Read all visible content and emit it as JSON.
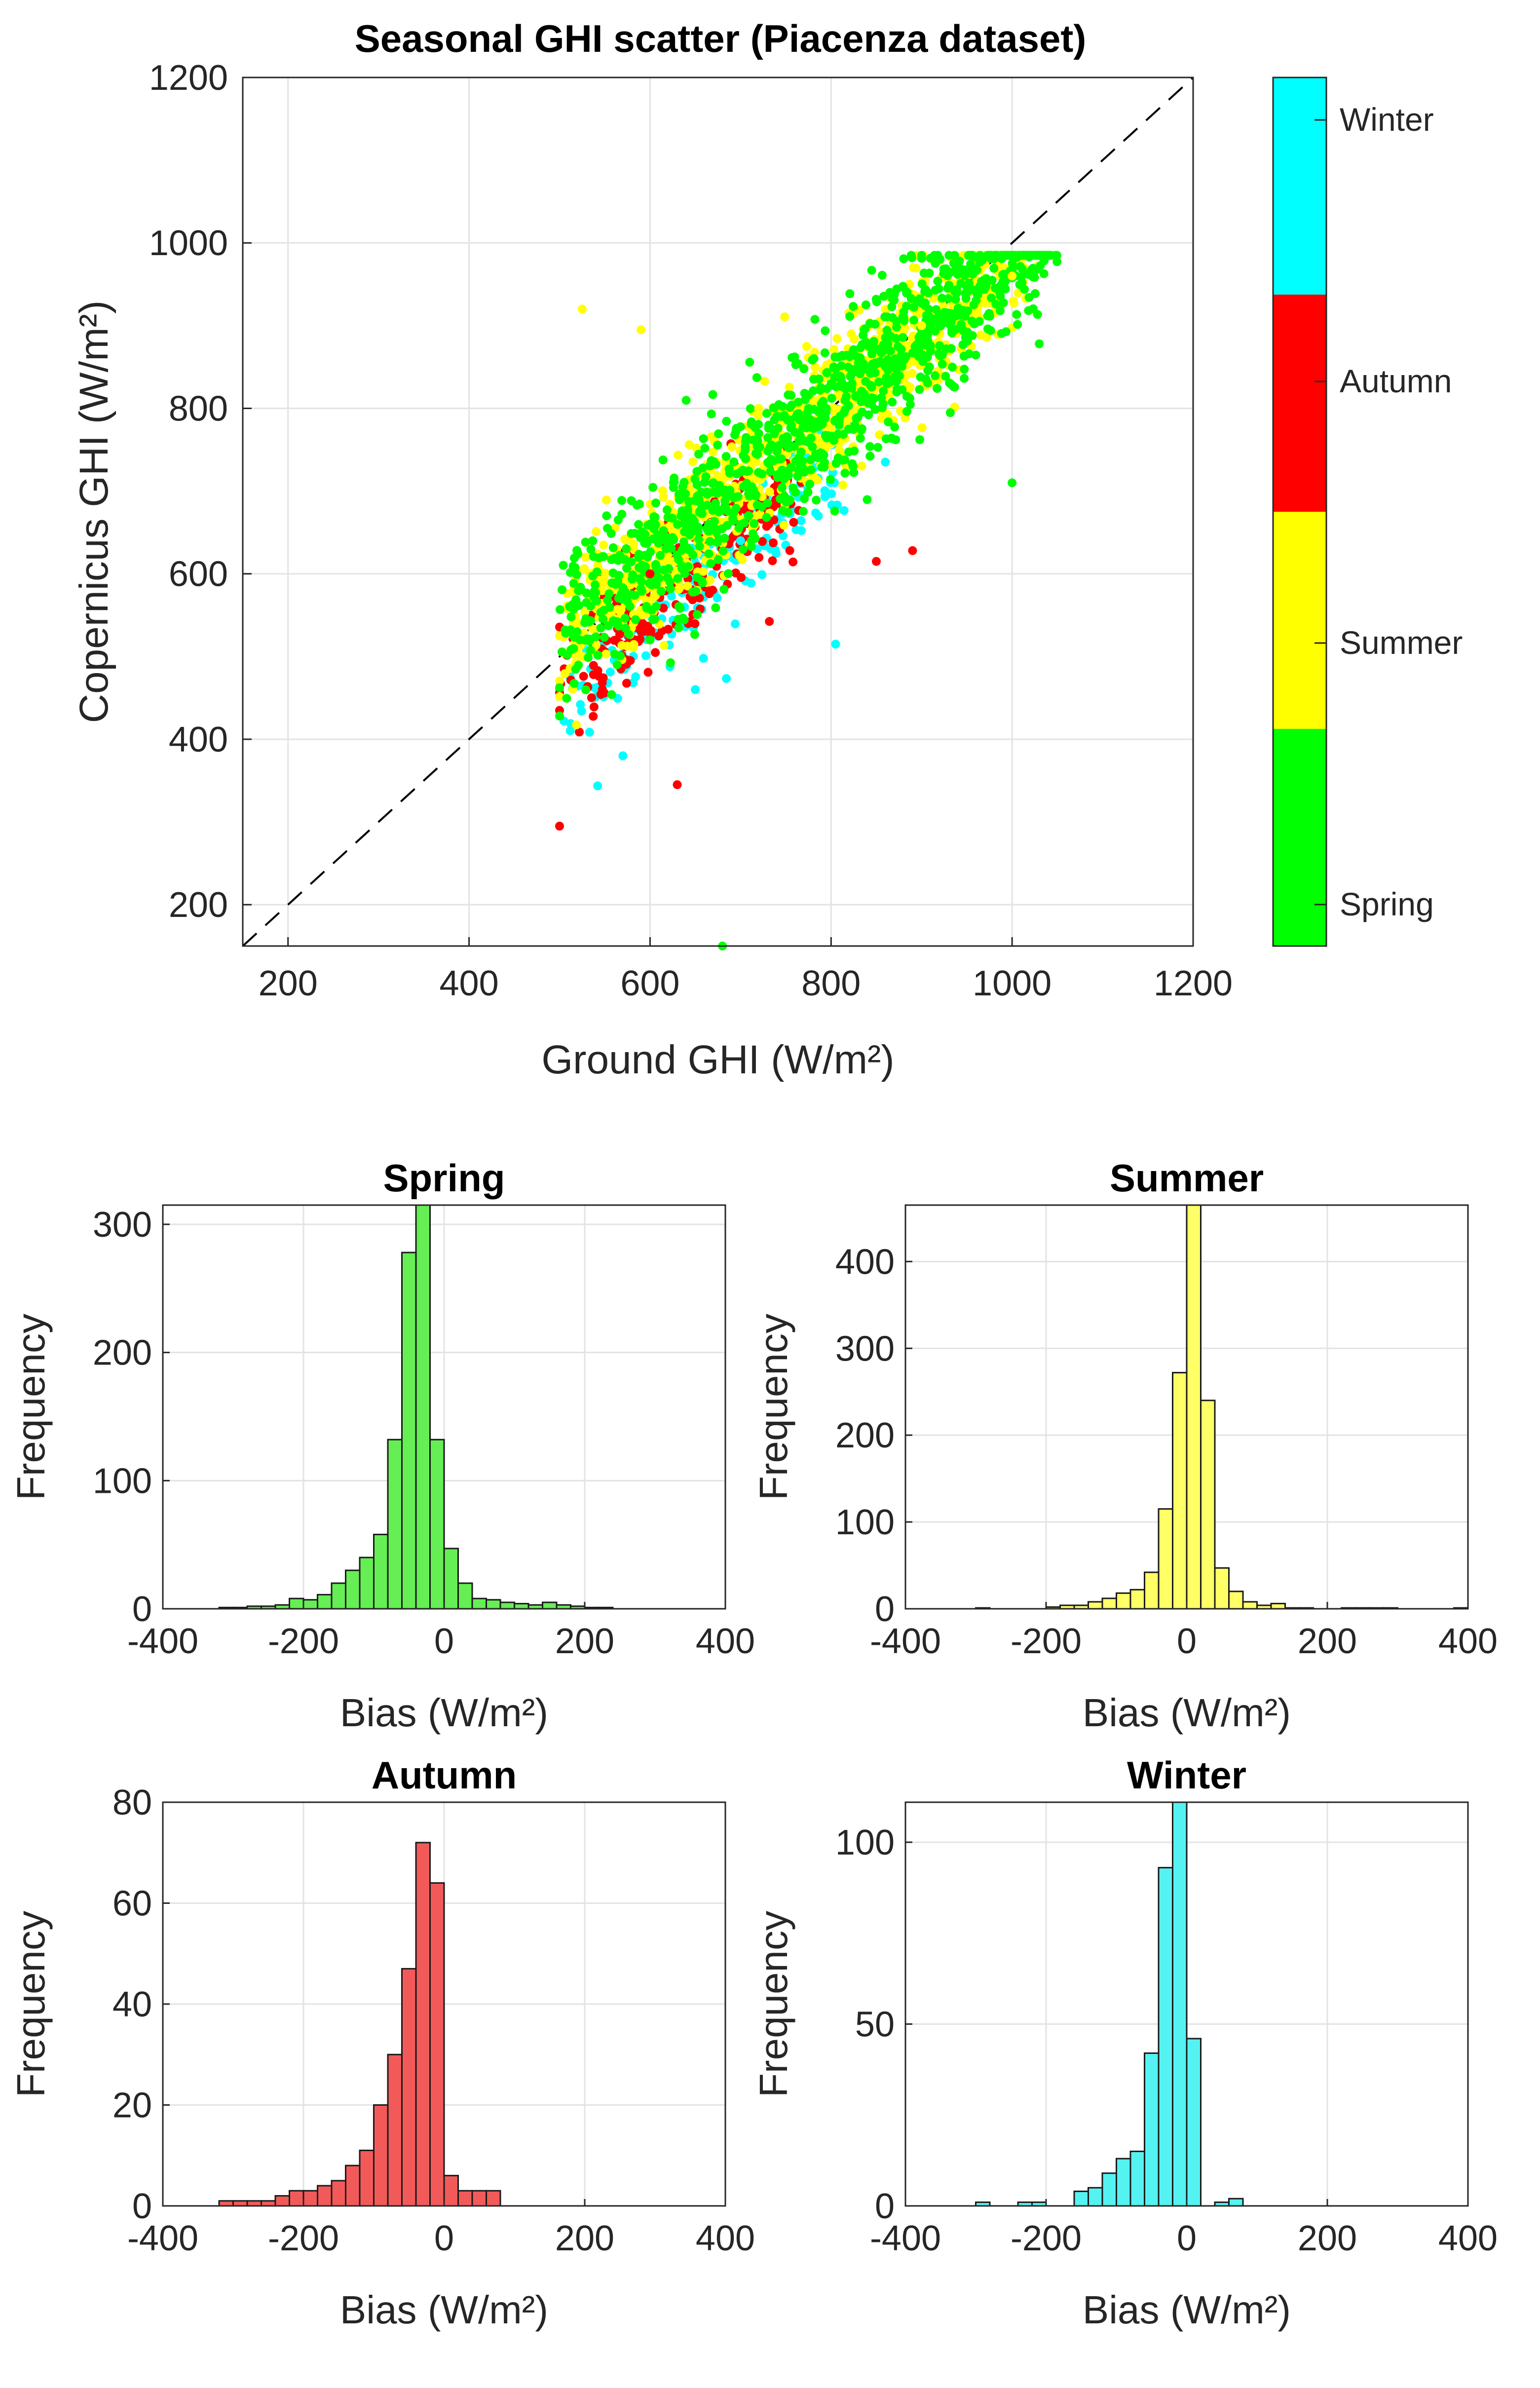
{
  "colors": {
    "Spring": "#00ff00",
    "Summer": "#ffff00",
    "Autumn": "#ff0000",
    "Winter": "#00ffff",
    "hist": {
      "Spring": "#66ee55",
      "Summer": "#ffff66",
      "Autumn": "#f25a5a",
      "Winter": "#55f2f2"
    }
  },
  "chart_data": [
    {
      "type": "scatter",
      "title": "Seasonal GHI scatter (Piacenza dataset)",
      "xlabel": "Ground GHI (W/m²)",
      "ylabel": "Copernicus GHI (W/m²)",
      "xlim": [
        150,
        1200
      ],
      "ylim": [
        150,
        1200
      ],
      "xticks": [
        "200",
        "400",
        "600",
        "800",
        "1000",
        "1200"
      ],
      "yticks": [
        "200",
        "400",
        "600",
        "800",
        "1000",
        "1200"
      ],
      "reference_line": "1:1 dashed",
      "grid": true,
      "colorbar": {
        "labels": [
          "Winter",
          "Autumn",
          "Summer",
          "Spring"
        ]
      },
      "series": [
        {
          "name": "Spring",
          "description": "about 1100 points spread from x 500–1040, y 150–985",
          "values": [
            [
              680,
              150
            ],
            [
              1000,
              710
            ],
            [
              600,
              520
            ],
            [
              800,
              830
            ],
            [
              950,
              940
            ]
          ]
        },
        {
          "name": "Summer",
          "description": "about 1000 points clustered along the 1:1 line",
          "values": [
            [
              525,
              920
            ],
            [
              590,
              895
            ],
            [
              720,
              800
            ],
            [
              900,
              900
            ],
            [
              1000,
              960
            ]
          ]
        },
        {
          "name": "Autumn",
          "description": "about 250 points in the 500–760 range, mostly below 1:1",
          "values": [
            [
              500,
              295
            ],
            [
              630,
              345
            ],
            [
              600,
              600
            ],
            [
              890,
              628
            ],
            [
              850,
              615
            ]
          ]
        },
        {
          "name": "Winter",
          "description": "about 210 points in the 500–810 range, below 1:1",
          "values": [
            [
              805,
              515
            ],
            [
              570,
              380
            ],
            [
              650,
              460
            ],
            [
              860,
              735
            ],
            [
              700,
              640
            ]
          ]
        }
      ]
    },
    {
      "type": "bar",
      "title": "Spring",
      "xlabel": "Bias (W/m²)",
      "ylabel": "Frequency",
      "xlim": [
        -400,
        400
      ],
      "ylim": [
        0,
        315
      ],
      "xticks": [
        "-400",
        "-200",
        "0",
        "200",
        "400"
      ],
      "yticks": [
        "0",
        "100",
        "200",
        "300"
      ],
      "bin_edges_start": -320,
      "bin_width": 20,
      "values": [
        1,
        1,
        2,
        2,
        3,
        8,
        7,
        11,
        20,
        30,
        40,
        58,
        132,
        278,
        315,
        132,
        47,
        20,
        8,
        7,
        5,
        4,
        3,
        5,
        3,
        2,
        1,
        1
      ]
    },
    {
      "type": "bar",
      "title": "Summer",
      "xlabel": "Bias (W/m²)",
      "ylabel": "Frequency",
      "xlim": [
        -400,
        400
      ],
      "ylim": [
        0,
        465
      ],
      "xticks": [
        "-400",
        "-200",
        "0",
        "200",
        "400"
      ],
      "yticks": [
        "0",
        "100",
        "200",
        "300",
        "400"
      ],
      "bin_edges_start": -320,
      "bin_width": 20,
      "values": [
        0,
        1,
        0,
        0,
        0,
        0,
        2,
        4,
        4,
        8,
        12,
        18,
        22,
        42,
        115,
        272,
        465,
        240,
        47,
        20,
        8,
        4,
        6,
        1,
        1,
        0,
        0,
        1,
        1,
        1,
        1,
        0,
        0,
        0,
        0,
        1
      ]
    },
    {
      "type": "bar",
      "title": "Autumn",
      "xlabel": "Bias (W/m²)",
      "ylabel": "Frequency",
      "xlim": [
        -400,
        400
      ],
      "ylim": [
        0,
        80
      ],
      "xticks": [
        "-400",
        "-200",
        "0",
        "200",
        "400"
      ],
      "yticks": [
        "0",
        "20",
        "40",
        "60",
        "80"
      ],
      "bin_edges_start": -320,
      "bin_width": 20,
      "values": [
        1,
        1,
        1,
        1,
        2,
        3,
        3,
        4,
        5,
        8,
        11,
        20,
        30,
        47,
        72,
        64,
        6,
        3,
        3,
        3
      ]
    },
    {
      "type": "bar",
      "title": "Winter",
      "xlabel": "Bias (W/m²)",
      "ylabel": "Frequency",
      "xlim": [
        -400,
        400
      ],
      "ylim": [
        0,
        111
      ],
      "xticks": [
        "-400",
        "-200",
        "0",
        "200",
        "400"
      ],
      "yticks": [
        "0",
        "50",
        "100"
      ],
      "bin_edges_start": -320,
      "bin_width": 20,
      "values": [
        0,
        1,
        0,
        0,
        1,
        1,
        0,
        0,
        4,
        5,
        9,
        13,
        15,
        42,
        93,
        111,
        46,
        0,
        1,
        2
      ]
    }
  ]
}
